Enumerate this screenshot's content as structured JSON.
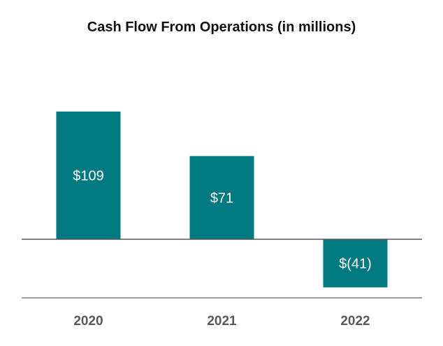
{
  "chart_data": {
    "type": "bar",
    "title": "Cash Flow From Operations (in millions)",
    "categories": [
      "2020",
      "2021",
      "2022"
    ],
    "values": [
      109,
      71,
      -41
    ],
    "data_labels": [
      "$109",
      "$71",
      "$(41)"
    ],
    "xlabel": "",
    "ylabel": "",
    "ylim": [
      -50,
      110
    ],
    "grid": false,
    "legend": "none",
    "colors": {
      "bar": "#007a80",
      "label_inside": "#ffffff",
      "category_label": "#595959",
      "axis_line": "#7f7f7f"
    }
  }
}
